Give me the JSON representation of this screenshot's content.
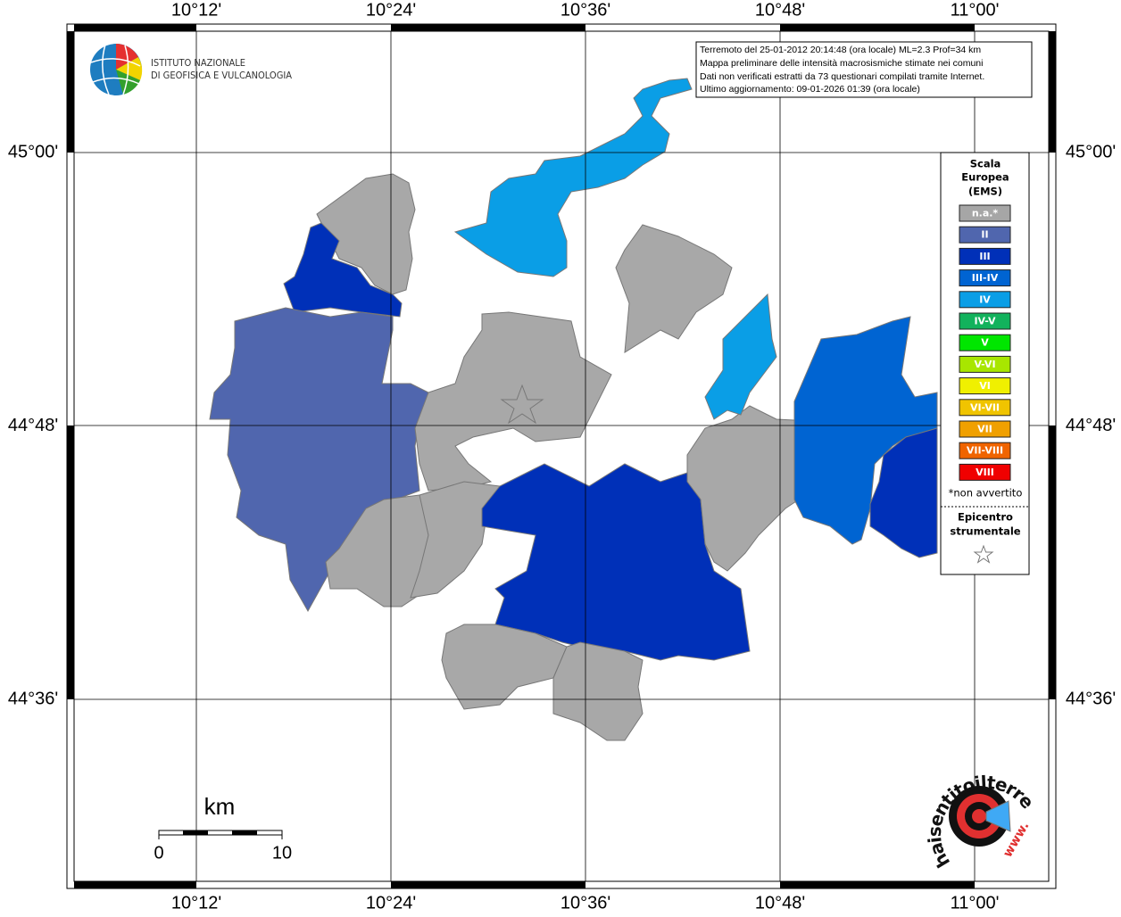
{
  "header": {
    "logo_lines": [
      "ISTITUTO NAZIONALE",
      "DI GEOFISICA E VULCANOLOGIA"
    ]
  },
  "info_box": {
    "lines": [
      "Terremoto del 25-01-2012 20:14:48 (ora locale) ML=2.3 Prof=34 km",
      "Mappa preliminare delle intensità macrosismiche stimate nei comuni",
      "Dati non verificati estratti da 73 questionari compilati tramite Internet.",
      "Ultimo aggiornamento: 09-01-2026 01:39 (ora locale)"
    ]
  },
  "axes": {
    "longitude_labels": [
      "10°12'",
      "10°24'",
      "10°36'",
      "10°48'",
      "11°00'"
    ],
    "latitude_labels": [
      "45°00'",
      "44°48'",
      "44°36'"
    ]
  },
  "legend": {
    "title_lines": [
      "Scala",
      "Europea",
      "(EMS)"
    ],
    "items": [
      {
        "label": "n.a.*",
        "color": "#a6a6a6"
      },
      {
        "label": "II",
        "color": "#5066ae"
      },
      {
        "label": "III",
        "color": "#0030b8"
      },
      {
        "label": "III-IV",
        "color": "#0064d2"
      },
      {
        "label": "IV",
        "color": "#0a9ee6"
      },
      {
        "label": "IV-V",
        "color": "#12b25c"
      },
      {
        "label": "V",
        "color": "#00e600"
      },
      {
        "label": "V-VI",
        "color": "#a8e600"
      },
      {
        "label": "VI",
        "color": "#f0f000"
      },
      {
        "label": "VI-VII",
        "color": "#f0c400"
      },
      {
        "label": "VII",
        "color": "#f0a000"
      },
      {
        "label": "VII-VIII",
        "color": "#f06400"
      },
      {
        "label": "VIII",
        "color": "#f00000"
      }
    ],
    "note": "*non avvertito",
    "epicenter_lines": [
      "Epicentro",
      "strumentale"
    ]
  },
  "scale_bar": {
    "unit": "km",
    "labels": [
      "0",
      "10"
    ]
  },
  "footer_logo": {
    "text": "haisentitoilterremoto.it",
    "prefix": "www."
  }
}
